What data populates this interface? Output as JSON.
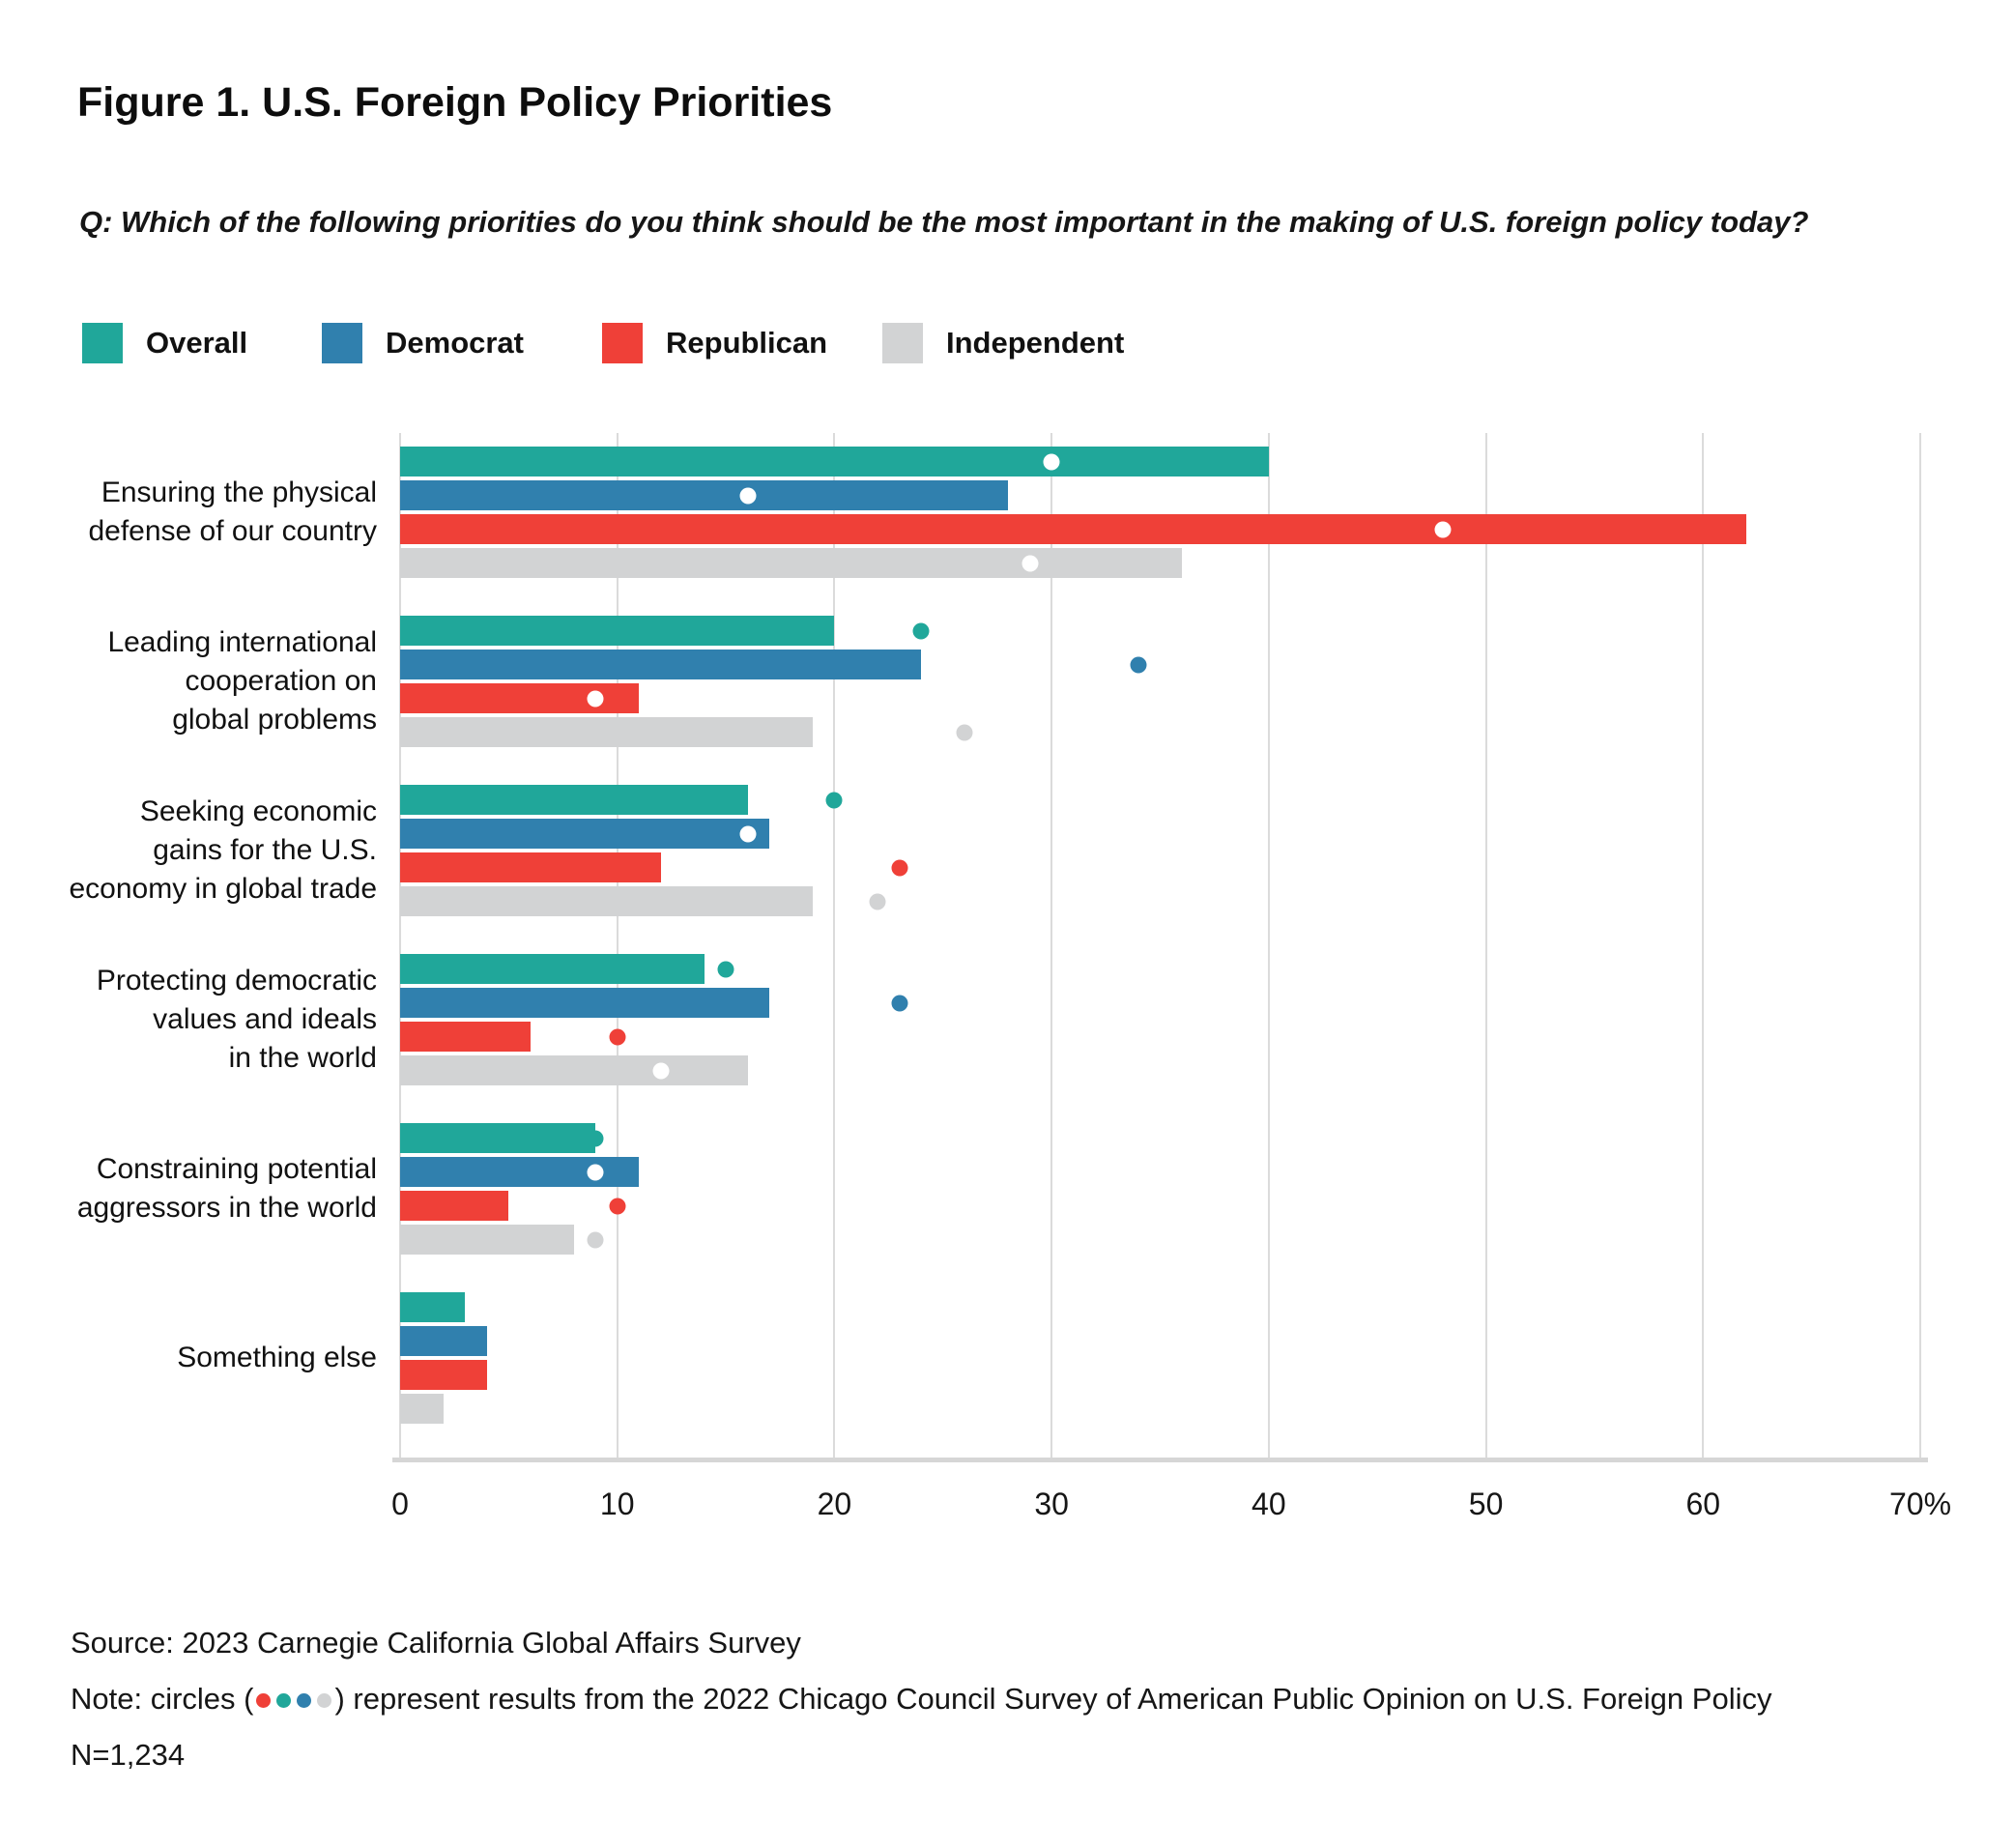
{
  "title": "Figure 1. U.S. Foreign Policy Priorities",
  "question": "Q: Which of the following priorities do you think should be the most important in the making of U.S. foreign policy today?",
  "legend": [
    {
      "label": "Overall",
      "color": "#20A79A"
    },
    {
      "label": "Democrat",
      "color": "#3080AE"
    },
    {
      "label": "Republican",
      "color": "#EF4038"
    },
    {
      "label": "Independent",
      "color": "#D2D3D4"
    }
  ],
  "chart_data": {
    "type": "bar",
    "orientation": "horizontal",
    "title": "Figure 1. U.S. Foreign Policy Priorities",
    "xlabel": "",
    "ylabel": "",
    "xlim": [
      0,
      70
    ],
    "grid": true,
    "legend_position": "top",
    "xticks": [
      0,
      10,
      20,
      30,
      40,
      50,
      60,
      70
    ],
    "xtick_labels": [
      "0",
      "10",
      "20",
      "30",
      "40",
      "50",
      "60",
      "70%"
    ],
    "categories": [
      "Ensuring the physical\ndefense of our country",
      "Leading international\ncooperation on\nglobal problems",
      "Seeking economic\ngains for the U.S.\neconomy in global trade",
      "Protecting democratic\nvalues and ideals\nin the world",
      "Constraining potential\naggressors in the world",
      "Something else"
    ],
    "series": [
      {
        "name": "Overall",
        "color": "#20A79A",
        "values": [
          40,
          20,
          16,
          14,
          9,
          3
        ],
        "dots_2022": [
          30,
          24,
          20,
          15,
          9,
          null
        ]
      },
      {
        "name": "Democrat",
        "color": "#3080AE",
        "values": [
          28,
          24,
          17,
          17,
          11,
          4
        ],
        "dots_2022": [
          16,
          34,
          16,
          23,
          9,
          null
        ]
      },
      {
        "name": "Republican",
        "color": "#EF4038",
        "values": [
          62,
          11,
          12,
          6,
          5,
          4
        ],
        "dots_2022": [
          48,
          9,
          23,
          10,
          10,
          null
        ]
      },
      {
        "name": "Independent",
        "color": "#D2D3D4",
        "values": [
          36,
          19,
          19,
          16,
          8,
          2
        ],
        "dots_2022": [
          29,
          26,
          22,
          12,
          9,
          null
        ]
      }
    ],
    "dot_note": "circles represent results from the 2022 Chicago Council Survey"
  },
  "footer": {
    "source": "Source: 2023 Carnegie California Global Affairs Survey",
    "note_prefix": "Note: circles (",
    "note_suffix": ") represent results from the 2022 Chicago Council Survey of American Public Opinion on U.S. Foreign Policy",
    "note_dot_colors": [
      "#EF4038",
      "#20A79A",
      "#3080AE",
      "#D2D3D4"
    ],
    "n": "N=1,234"
  }
}
